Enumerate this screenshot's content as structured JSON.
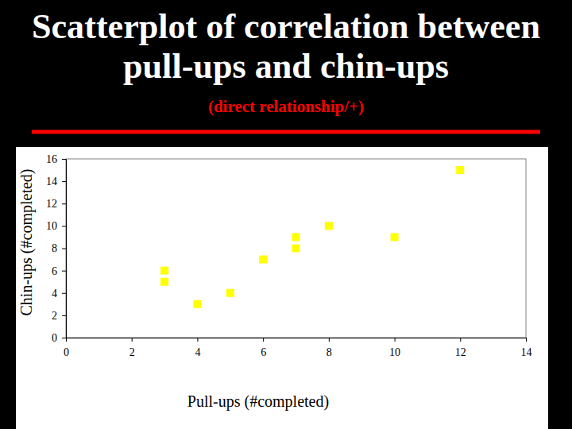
{
  "chart_data": {
    "type": "scatter",
    "title": [
      "Scatterplot of correlation between",
      "pull-ups and chin-ups"
    ],
    "subtitle": "(direct relationship/+)",
    "x_label": "Pull-ups (#completed)",
    "y_label": "Chin-ups (#completed)",
    "x": [
      3,
      3,
      4,
      5,
      6,
      7,
      7,
      8,
      10,
      12
    ],
    "values": [
      6,
      5,
      3,
      4,
      7,
      9,
      8,
      10,
      9,
      15
    ],
    "color": "#ffff00",
    "marker": "square",
    "grid": false,
    "xlim": [
      0,
      14
    ],
    "xticks": [
      0,
      2,
      4,
      6,
      8,
      10,
      12,
      14
    ],
    "ylim": [
      0,
      16
    ],
    "yticks": [
      0,
      2,
      4,
      6,
      8,
      10,
      12,
      14,
      16
    ]
  }
}
